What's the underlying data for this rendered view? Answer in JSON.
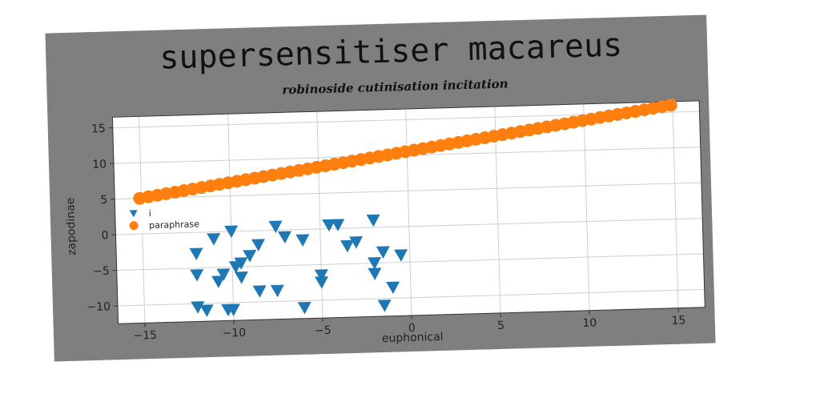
{
  "chart_data": {
    "type": "scatter",
    "title": "supersensitiser macareus",
    "subtitle": "robinoside cutinisation incitation",
    "xlabel": "euphonical",
    "ylabel": "zapodinae",
    "xlim": [
      -16.5,
      16.5
    ],
    "ylim": [
      -12.5,
      16.5
    ],
    "xticks": [
      -15,
      -10,
      -5,
      0,
      5,
      10,
      15
    ],
    "yticks": [
      -10,
      -5,
      0,
      5,
      10,
      15
    ],
    "xtick_labels": [
      "−15",
      "−10",
      "−5",
      "0",
      "5",
      "10",
      "15"
    ],
    "ytick_labels": [
      "−10",
      "−5",
      "0",
      "5",
      "10",
      "15"
    ],
    "grid": true,
    "legend_position": "center-left",
    "series": [
      {
        "name": "i",
        "marker": "triangle-down",
        "color": "#1f77b4",
        "points": [
          [
            -12,
            -3
          ],
          [
            -12,
            -6
          ],
          [
            -12,
            -10.5
          ],
          [
            -11.5,
            -11
          ],
          [
            -11,
            -1
          ],
          [
            -10.8,
            -7
          ],
          [
            -10.5,
            -6
          ],
          [
            -10.3,
            -11
          ],
          [
            -10,
            0
          ],
          [
            -10,
            -11
          ],
          [
            -9.8,
            -5
          ],
          [
            -9.5,
            -4.5
          ],
          [
            -9.5,
            -6.5
          ],
          [
            -9,
            -3.5
          ],
          [
            -8.5,
            -8.5
          ],
          [
            -8.5,
            -2
          ],
          [
            -7.5,
            0.5
          ],
          [
            -7.5,
            -8.5
          ],
          [
            -7,
            -1
          ],
          [
            -6,
            -11
          ],
          [
            -6,
            -1.5
          ],
          [
            -5,
            -6.5
          ],
          [
            -5,
            -7.5
          ],
          [
            -4.5,
            0.5
          ],
          [
            -4,
            0.5
          ],
          [
            -3.5,
            -2.5
          ],
          [
            -3,
            -2
          ],
          [
            -2,
            1
          ],
          [
            -2,
            -5
          ],
          [
            -2,
            -6.5
          ],
          [
            -1.5,
            -3.5
          ],
          [
            -1.5,
            -11
          ],
          [
            -1,
            -8.5
          ],
          [
            -0.5,
            -4
          ]
        ]
      },
      {
        "name": "paraphrase",
        "marker": "circle",
        "color": "#ff7f0e",
        "x_start": -15.1,
        "x_end": 14.9,
        "y_start": 5.0,
        "y_end": 16.0,
        "n_points": 61
      }
    ]
  },
  "colors": {
    "panel": "#7f7f7f",
    "plot_bg": "#ffffff",
    "grid": "#cfcfcf"
  }
}
